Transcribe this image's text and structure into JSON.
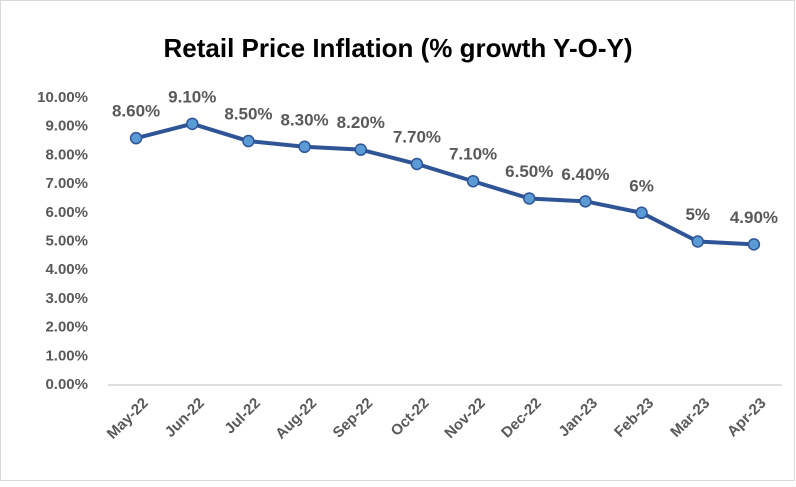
{
  "chart_data": {
    "type": "line",
    "title": "Retail Price Inflation (% growth Y-O-Y)",
    "categories": [
      "May-22",
      "Jun-22",
      "Jul-22",
      "Aug-22",
      "Sep-22",
      "Oct-22",
      "Nov-22",
      "Dec-22",
      "Jan-23",
      "Feb-23",
      "Mar-23",
      "Apr-23"
    ],
    "values": [
      8.6,
      9.1,
      8.5,
      8.3,
      8.2,
      7.7,
      7.1,
      6.5,
      6.4,
      6,
      5,
      4.9
    ],
    "value_labels": [
      "8.60%",
      "9.10%",
      "8.50%",
      "8.30%",
      "8.20%",
      "7.70%",
      "7.10%",
      "6.50%",
      "6.40%",
      "6%",
      "5%",
      "4.90%"
    ],
    "color": "#2f5597",
    "marker_color": "#5b9bd5",
    "ylim": [
      0,
      10
    ],
    "yticks": [
      {
        "value": 0,
        "label": "0.00%"
      },
      {
        "value": 1,
        "label": "1.00%"
      },
      {
        "value": 2,
        "label": "2.00%"
      },
      {
        "value": 3,
        "label": "3.00%"
      },
      {
        "value": 4,
        "label": "4.00%"
      },
      {
        "value": 5,
        "label": "5.00%"
      },
      {
        "value": 6,
        "label": "6.00%"
      },
      {
        "value": 7,
        "label": "7.00%"
      },
      {
        "value": 8,
        "label": "8.00%"
      },
      {
        "value": 9,
        "label": "9.00%"
      },
      {
        "value": 10,
        "label": "10.00%"
      }
    ],
    "grid": false
  }
}
